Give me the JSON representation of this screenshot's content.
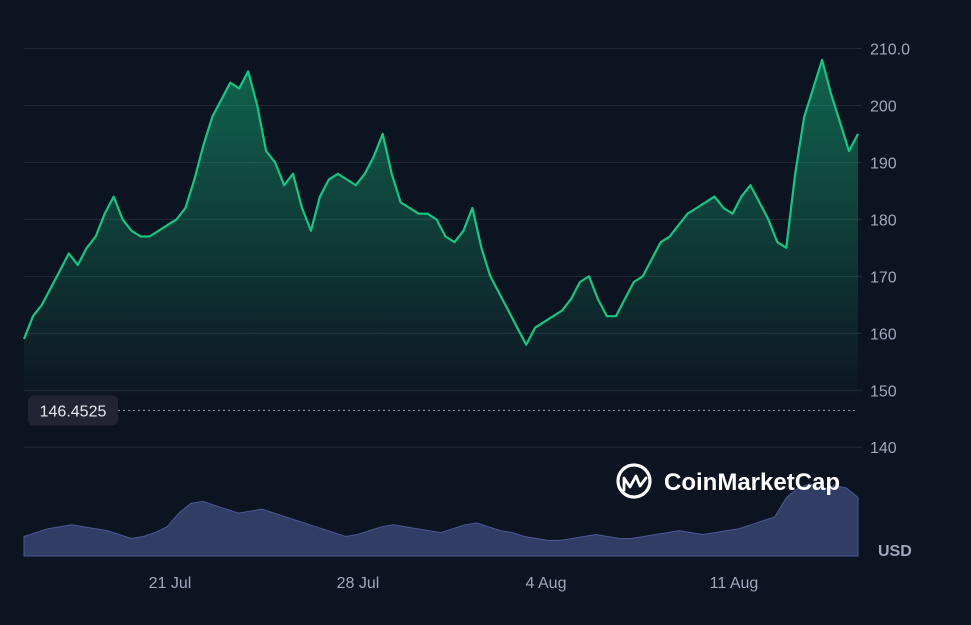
{
  "colors": {
    "background": "#0d1421",
    "line": "#16c784",
    "grid": "#222a38",
    "axis_text": "#a1a7bb",
    "volume": "#3a4472",
    "reference_line": "#a1a7bb",
    "label_bg": "#222531",
    "label_text": "#e6e8ee"
  },
  "watermark": {
    "text": "CoinMarketCap",
    "icon": "coinmarketcap-logo-icon"
  },
  "reference": {
    "value": 146.4525,
    "label": "146.4525"
  },
  "chart_data": {
    "type": "area",
    "title": "",
    "currency_label": "USD",
    "x_ticks": [
      "21 Jul",
      "28 Jul",
      "4 Aug",
      "11 Aug"
    ],
    "y_ticks": [
      "210.0",
      "200",
      "190",
      "180",
      "170",
      "160",
      "150",
      "140"
    ],
    "ylim": [
      136,
      215
    ],
    "grid": true,
    "series": [
      {
        "values": [
          159,
          163,
          165,
          168,
          171,
          174,
          172,
          175,
          177,
          181,
          184,
          180,
          178,
          177,
          177,
          178,
          179,
          180,
          182,
          187,
          193,
          198,
          201,
          204,
          203,
          206,
          200,
          192,
          190,
          186,
          188,
          182,
          178,
          184,
          187,
          188,
          187,
          186,
          188,
          191,
          195,
          188,
          183,
          182,
          181,
          181,
          180,
          177,
          176,
          178,
          182,
          175,
          170,
          167,
          164,
          161,
          158,
          161,
          162,
          163,
          164,
          166,
          169,
          170,
          166,
          163,
          163,
          166,
          169,
          170,
          173,
          176,
          177,
          179,
          181,
          182,
          183,
          184,
          182,
          181,
          184,
          186,
          183,
          180,
          176,
          175,
          188,
          198,
          203,
          208,
          202,
          197,
          192,
          195
        ]
      }
    ],
    "volume": {
      "values": [
        10,
        12,
        14,
        15,
        16,
        15,
        14,
        13,
        11,
        9,
        10,
        12,
        15,
        22,
        27,
        28,
        26,
        24,
        22,
        23,
        24,
        22,
        20,
        18,
        16,
        14,
        12,
        10,
        11,
        13,
        15,
        16,
        15,
        14,
        13,
        12,
        14,
        16,
        17,
        15,
        13,
        12,
        10,
        9,
        8,
        8,
        9,
        10,
        11,
        10,
        9,
        9,
        10,
        11,
        12,
        13,
        12,
        11,
        12,
        13,
        14,
        16,
        18,
        20,
        30,
        35,
        37,
        34,
        36,
        35,
        30
      ]
    }
  }
}
